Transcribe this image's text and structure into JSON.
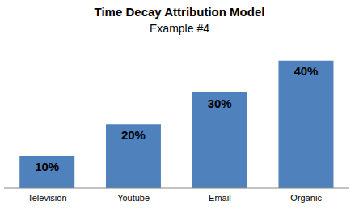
{
  "chart_data": {
    "type": "bar",
    "title": "Time Decay Attribution Model",
    "subtitle": "Example #4",
    "categories": [
      "Television",
      "Youtube",
      "Email",
      "Organic"
    ],
    "values": [
      10,
      20,
      30,
      40
    ],
    "value_labels": [
      "10%",
      "20%",
      "30%",
      "40%"
    ],
    "color": "#4f81bd",
    "ylim": [
      0,
      45
    ],
    "data_labels": true,
    "tick_labels": "x",
    "grid": false
  }
}
